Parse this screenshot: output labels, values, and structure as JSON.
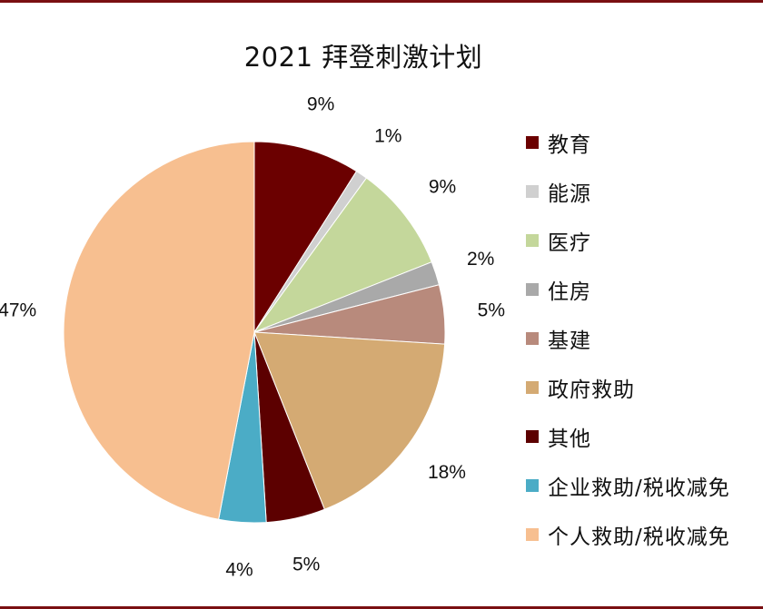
{
  "chart_data": {
    "type": "pie",
    "title": "2021 拜登刺激计划",
    "slices": [
      {
        "name": "教育",
        "value": 9,
        "label": "9%",
        "color": "#6b0000"
      },
      {
        "name": "能源",
        "value": 1,
        "label": "1%",
        "color": "#d0d0d0"
      },
      {
        "name": "医疗",
        "value": 9,
        "label": "9%",
        "color": "#c4d79b"
      },
      {
        "name": "住房",
        "value": 2,
        "label": "2%",
        "color": "#a9a9a9"
      },
      {
        "name": "基建",
        "value": 5,
        "label": "5%",
        "color": "#b88a7c"
      },
      {
        "name": "政府救助",
        "value": 18,
        "label": "18%",
        "color": "#d4aa73"
      },
      {
        "name": "其他",
        "value": 5,
        "label": "5%",
        "color": "#5c0000"
      },
      {
        "name": "企业救助/税收减免",
        "value": 4,
        "label": "4%",
        "color": "#4bacc6"
      },
      {
        "name": "个人救助/税收减免",
        "value": 47,
        "label": "47%",
        "color": "#f7bf90"
      }
    ],
    "legend_position": "right",
    "start_angle_deg": 0,
    "direction": "clockwise"
  }
}
